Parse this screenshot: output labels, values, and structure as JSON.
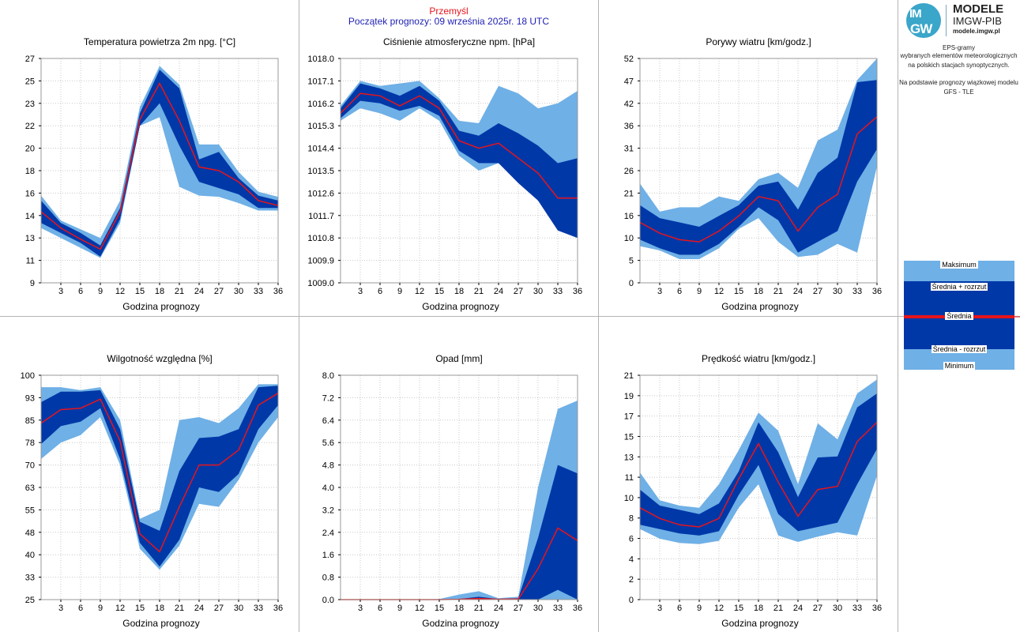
{
  "header": {
    "station": "Przemyśl",
    "forecast_start": "Początek prognozy: 09 września 2025r. 18 UTC"
  },
  "logo": {
    "brand_top": "IM",
    "brand_bottom": "GW",
    "title": "MODELE",
    "subtitle": "IMGW-PIB",
    "url": "modele.imgw.pl"
  },
  "description": {
    "line1": "EPS-gramy",
    "line2": "wybranych elementów meteorologicznych",
    "line3": "na polskich stacjach  synoptycznych.",
    "line4": "Na podstawie prognozy wiązkowej modelu",
    "line5": "GFS - TLE"
  },
  "legend": {
    "max_label": "Maksimum",
    "plus_label": "Średnia + rozrzut",
    "mean_label": "Średnia",
    "minus_label": "Średnia - rozrzut",
    "min_label": "Minimum"
  },
  "colors": {
    "light_band": "#6fb0e6",
    "dark_band": "#0038a8",
    "mean_line": "#e8141b",
    "grid": "#c8c8c8",
    "frame": "#999999"
  },
  "chart_data": [
    {
      "type": "area",
      "title": "Temperatura powietrza 2m npg. [°C]",
      "xlabel": "Godzina prognozy",
      "ylabel": "",
      "x": [
        0,
        3,
        6,
        9,
        12,
        15,
        18,
        21,
        24,
        27,
        30,
        33,
        36
      ],
      "xticks": [
        "3",
        "6",
        "9",
        "12",
        "15",
        "18",
        "21",
        "24",
        "27",
        "30",
        "33",
        "36"
      ],
      "ylim": [
        9,
        27
      ],
      "yticks": [
        "9",
        "11",
        "13",
        "14",
        "16",
        "18",
        "20",
        "22",
        "23",
        "25",
        "27"
      ],
      "series": [
        {
          "name": "Maksimum",
          "values": [
            16.0,
            14.0,
            13.3,
            12.6,
            15.6,
            23.1,
            26.4,
            24.9,
            20.1,
            20.1,
            17.9,
            16.3,
            15.9
          ]
        },
        {
          "name": "Średnia + rozrzut",
          "values": [
            15.6,
            13.8,
            13.0,
            12.0,
            15.0,
            22.6,
            26.1,
            24.6,
            18.9,
            19.5,
            17.4,
            16.0,
            15.6
          ]
        },
        {
          "name": "Średnia",
          "values": [
            14.7,
            13.4,
            12.5,
            11.7,
            14.7,
            22.1,
            25.0,
            22.0,
            18.3,
            18.0,
            17.1,
            15.6,
            15.2
          ]
        },
        {
          "name": "Średnia - rozrzut",
          "values": [
            13.8,
            13.0,
            12.2,
            11.1,
            14.1,
            21.6,
            23.4,
            20.0,
            17.1,
            16.6,
            16.1,
            15.0,
            15.0
          ]
        },
        {
          "name": "Minimum",
          "values": [
            13.4,
            12.6,
            11.8,
            11.0,
            13.8,
            21.6,
            22.3,
            16.7,
            16.0,
            15.9,
            15.4,
            14.8,
            14.8
          ]
        }
      ]
    },
    {
      "type": "area",
      "title": "Ciśnienie atmosferyczne npm. [hPa]",
      "xlabel": "Godzina prognozy",
      "ylabel": "",
      "x": [
        0,
        3,
        6,
        9,
        12,
        15,
        18,
        21,
        24,
        27,
        30,
        33,
        36
      ],
      "xticks": [
        "3",
        "6",
        "9",
        "12",
        "15",
        "18",
        "21",
        "24",
        "27",
        "30",
        "33",
        "36"
      ],
      "ylim": [
        1009.0,
        1018.0
      ],
      "yticks": [
        "1009.0",
        "1009.9",
        "1010.8",
        "1011.7",
        "1012.6",
        "1013.5",
        "1014.4",
        "1015.3",
        "1016.2",
        "1017.1",
        "1018.0"
      ],
      "series": [
        {
          "name": "Maksimum",
          "values": [
            1016.1,
            1017.1,
            1016.9,
            1017.0,
            1017.1,
            1016.4,
            1015.5,
            1015.4,
            1016.9,
            1016.6,
            1016.0,
            1016.2,
            1016.7
          ]
        },
        {
          "name": "Średnia + rozrzut",
          "values": [
            1016.0,
            1017.0,
            1016.8,
            1016.5,
            1016.9,
            1016.3,
            1015.1,
            1014.9,
            1015.4,
            1015.0,
            1014.5,
            1013.8,
            1014.0
          ]
        },
        {
          "name": "Średnia",
          "values": [
            1015.8,
            1016.6,
            1016.5,
            1016.1,
            1016.5,
            1016.0,
            1014.7,
            1014.4,
            1014.6,
            1014.0,
            1013.4,
            1012.4,
            1012.4
          ]
        },
        {
          "name": "Średnia - rozrzut",
          "values": [
            1015.6,
            1016.3,
            1016.2,
            1015.9,
            1016.1,
            1015.7,
            1014.3,
            1013.8,
            1013.8,
            1013.0,
            1012.3,
            1011.1,
            1010.8
          ]
        },
        {
          "name": "Minimum",
          "values": [
            1015.5,
            1016.0,
            1015.8,
            1015.5,
            1016.0,
            1015.5,
            1014.1,
            1013.5,
            1013.8,
            1013.1,
            1012.4,
            1011.2,
            1010.8
          ]
        }
      ]
    },
    {
      "type": "area",
      "title": "Porywy wiatru [km/godz.]",
      "xlabel": "Godzina prognozy",
      "ylabel": "",
      "x": [
        0,
        3,
        6,
        9,
        12,
        15,
        18,
        21,
        24,
        27,
        30,
        33,
        36
      ],
      "xticks": [
        "3",
        "6",
        "9",
        "12",
        "15",
        "18",
        "21",
        "24",
        "27",
        "30",
        "33",
        "36"
      ],
      "ylim": [
        0,
        52
      ],
      "yticks": [
        "0",
        "5",
        "10",
        "16",
        "21",
        "26",
        "31",
        "36",
        "42",
        "47",
        "52"
      ],
      "series": [
        {
          "name": "Maksimum",
          "values": [
            23.0,
            16.5,
            17.5,
            17.5,
            20.0,
            19.0,
            24.0,
            25.5,
            22.0,
            33.0,
            35.5,
            47.0,
            52.0
          ]
        },
        {
          "name": "Średnia + rozrzut",
          "values": [
            18.0,
            15.0,
            14.0,
            13.0,
            15.5,
            18.0,
            22.5,
            23.5,
            17.0,
            25.5,
            29.0,
            46.5,
            47.0
          ]
        },
        {
          "name": "Średnia",
          "values": [
            14.0,
            11.5,
            10.0,
            9.5,
            12.0,
            15.5,
            20.0,
            19.0,
            12.0,
            17.5,
            20.5,
            34.5,
            38.5
          ]
        },
        {
          "name": "Średnia - rozrzut",
          "values": [
            10.0,
            8.0,
            6.5,
            6.5,
            9.0,
            13.0,
            17.5,
            14.5,
            7.0,
            9.5,
            12.0,
            23.5,
            31.0
          ]
        },
        {
          "name": "Minimum",
          "values": [
            8.5,
            7.5,
            5.5,
            5.5,
            8.0,
            12.5,
            15.0,
            9.5,
            6.0,
            6.5,
            9.0,
            7.0,
            27.0
          ]
        }
      ]
    },
    {
      "type": "area",
      "title": "Wilgotność względna [%]",
      "xlabel": "Godzina prognozy",
      "ylabel": "",
      "x": [
        0,
        3,
        6,
        9,
        12,
        15,
        18,
        21,
        24,
        27,
        30,
        33,
        36
      ],
      "xticks": [
        "3",
        "6",
        "9",
        "12",
        "15",
        "18",
        "21",
        "24",
        "27",
        "30",
        "33",
        "36"
      ],
      "ylim": [
        25,
        100
      ],
      "yticks": [
        "25",
        "33",
        "40",
        "48",
        "55",
        "63",
        "70",
        "78",
        "85",
        "93",
        "100"
      ],
      "series": [
        {
          "name": "Maksimum",
          "values": [
            96,
            96,
            95,
            96,
            85,
            52,
            55,
            85,
            86,
            84,
            89,
            97,
            97
          ]
        },
        {
          "name": "Średnia + rozrzut",
          "values": [
            91,
            94.5,
            94.5,
            95,
            82,
            51,
            48,
            68,
            79,
            79.5,
            82,
            96,
            96.5
          ]
        },
        {
          "name": "Średnia",
          "values": [
            84,
            88.5,
            89,
            92,
            78,
            47,
            41,
            56,
            70,
            70,
            75,
            90,
            94
          ]
        },
        {
          "name": "Średnia - rozrzut",
          "values": [
            77,
            83,
            84.5,
            89,
            72,
            44,
            36,
            45,
            62.5,
            61,
            67,
            82,
            90
          ]
        },
        {
          "name": "Minimum",
          "values": [
            72,
            77.5,
            80,
            86,
            70,
            42,
            35,
            43,
            57,
            56,
            65,
            77.5,
            86
          ]
        }
      ]
    },
    {
      "type": "area",
      "title": "Opad [mm]",
      "xlabel": "Godzina prognozy",
      "ylabel": "",
      "x": [
        0,
        3,
        6,
        9,
        12,
        15,
        18,
        21,
        24,
        27,
        30,
        33,
        36
      ],
      "xticks": [
        "3",
        "6",
        "9",
        "12",
        "15",
        "18",
        "21",
        "24",
        "27",
        "30",
        "33",
        "36"
      ],
      "ylim": [
        0,
        8
      ],
      "yticks": [
        "0.0",
        "0.8",
        "1.6",
        "2.4",
        "3.2",
        "4.0",
        "4.8",
        "5.6",
        "6.4",
        "7.2",
        "8.0"
      ],
      "series": [
        {
          "name": "Maksimum",
          "values": [
            0,
            0,
            0,
            0,
            0,
            0.02,
            0.18,
            0.3,
            0.05,
            0.1,
            4.0,
            6.8,
            7.1
          ]
        },
        {
          "name": "Średnia + rozrzut",
          "values": [
            0,
            0,
            0,
            0,
            0,
            0,
            0.02,
            0.1,
            0.02,
            0.05,
            2.2,
            4.8,
            4.5
          ]
        },
        {
          "name": "Średnia",
          "values": [
            0,
            0,
            0,
            0,
            0,
            0,
            0.01,
            0.04,
            0.01,
            0.02,
            1.1,
            2.55,
            2.1
          ]
        },
        {
          "name": "Średnia - rozrzut",
          "values": [
            0,
            0,
            0,
            0,
            0,
            0,
            0,
            0,
            0,
            0,
            0,
            0.35,
            0
          ]
        },
        {
          "name": "Minimum",
          "values": [
            0,
            0,
            0,
            0,
            0,
            0,
            0,
            0,
            0,
            0,
            0,
            0,
            0
          ]
        }
      ]
    },
    {
      "type": "area",
      "title": "Prędkość wiatru [km/godz.]",
      "xlabel": "Godzina prognozy",
      "ylabel": "",
      "x": [
        0,
        3,
        6,
        9,
        12,
        15,
        18,
        21,
        24,
        27,
        30,
        33,
        36
      ],
      "xticks": [
        "3",
        "6",
        "9",
        "12",
        "15",
        "18",
        "21",
        "24",
        "27",
        "30",
        "33",
        "36"
      ],
      "ylim": [
        0,
        21
      ],
      "yticks": [
        "0",
        "2",
        "4",
        "6",
        "8",
        "10",
        "11",
        "13",
        "15",
        "17",
        "19",
        "21"
      ],
      "series": [
        {
          "name": "Maksimum",
          "values": [
            11.9,
            9.3,
            8.8,
            8.6,
            10.8,
            14.0,
            17.5,
            15.8,
            10.8,
            16.5,
            15.0,
            19.3,
            20.6
          ]
        },
        {
          "name": "Średnia + rozrzut",
          "values": [
            10.3,
            8.8,
            8.4,
            8.0,
            9.0,
            12.0,
            16.6,
            13.8,
            9.6,
            13.3,
            13.4,
            18.0,
            19.3
          ]
        },
        {
          "name": "Średnia",
          "values": [
            8.6,
            7.6,
            7.0,
            6.8,
            7.6,
            11.3,
            14.6,
            11.0,
            7.8,
            10.3,
            10.6,
            14.8,
            16.6
          ]
        },
        {
          "name": "Średnia - rozrzut",
          "values": [
            7.0,
            6.6,
            6.2,
            6.0,
            6.4,
            9.8,
            12.6,
            8.0,
            6.4,
            6.8,
            7.2,
            10.8,
            14.1
          ]
        },
        {
          "name": "Minimum",
          "values": [
            6.6,
            5.7,
            5.3,
            5.2,
            5.5,
            8.6,
            10.8,
            6.0,
            5.4,
            5.9,
            6.3,
            6.0,
            11.6
          ]
        }
      ]
    }
  ]
}
